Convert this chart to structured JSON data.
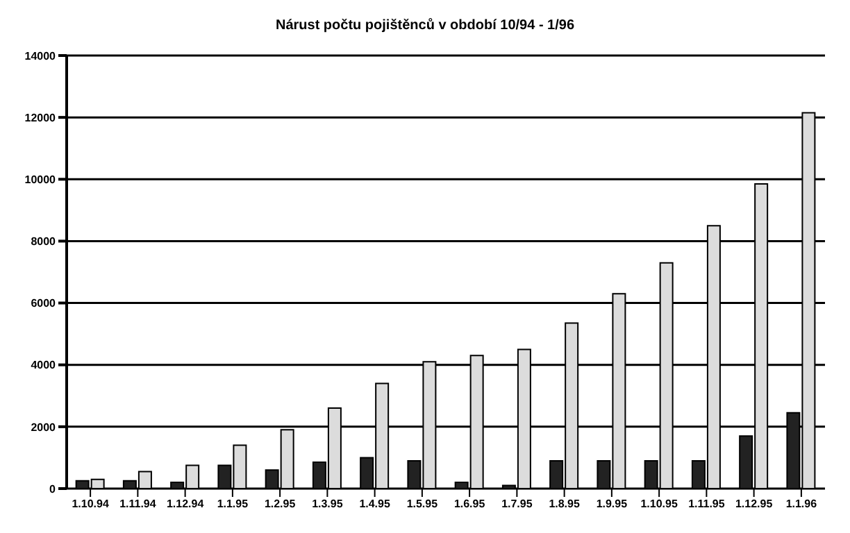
{
  "chart_data": {
    "type": "bar",
    "title": "Nárust počtu pojištěnců v období 10/94 - 1/96",
    "categories": [
      "1.10.94",
      "1.11.94",
      "1.12.94",
      "1.1.95",
      "1.2.95",
      "1.3.95",
      "1.4.95",
      "1.5.95",
      "1.6.95",
      "1.7.95",
      "1.8.95",
      "1.9.95",
      "1.10.95",
      "1.11.95",
      "1.12.95",
      "1.1.96"
    ],
    "series": [
      {
        "color": "#222222",
        "values": [
          250,
          250,
          200,
          750,
          600,
          850,
          1000,
          900,
          200,
          100,
          900,
          900,
          900,
          900,
          1700,
          2450
        ]
      },
      {
        "color": "#dcdcdc",
        "values": [
          300,
          550,
          750,
          1400,
          1900,
          2600,
          3400,
          4100,
          4300,
          4500,
          5350,
          6300,
          7300,
          8500,
          9850,
          12150
        ]
      }
    ],
    "ylim": [
      0,
      14000
    ],
    "yticks": [
      0,
      2000,
      4000,
      6000,
      8000,
      10000,
      12000,
      14000
    ],
    "grid": "y"
  }
}
